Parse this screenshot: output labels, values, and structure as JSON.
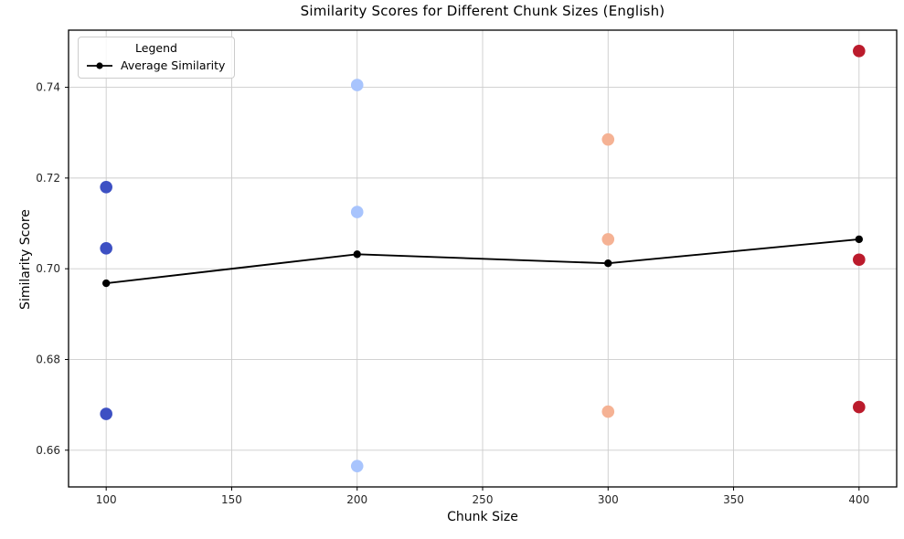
{
  "chart_data": {
    "type": "scatter",
    "title": "Similarity Scores for Different Chunk Sizes (English)",
    "xlabel": "Chunk Size",
    "ylabel": "Similarity Score",
    "xlim": [
      85,
      415
    ],
    "ylim": [
      0.6519,
      0.7526
    ],
    "xtick_values": [
      100,
      150,
      200,
      250,
      300,
      350,
      400
    ],
    "xtick_labels": [
      "100",
      "150",
      "200",
      "250",
      "300",
      "350",
      "400"
    ],
    "ytick_values": [
      0.66,
      0.68,
      0.7,
      0.72,
      0.74
    ],
    "ytick_labels": [
      "0.66",
      "0.68",
      "0.70",
      "0.72",
      "0.74"
    ],
    "grid": true,
    "grid_color": "#cccccc",
    "spine_color": "#000000",
    "tick_label_color": "#262626",
    "scatter_groups": [
      {
        "chunk_size": 100,
        "color": "#3d50c3",
        "values": [
          0.718,
          0.7045,
          0.668
        ]
      },
      {
        "chunk_size": 200,
        "color": "#a8c4fd",
        "values": [
          0.7405,
          0.7125,
          0.6565
        ]
      },
      {
        "chunk_size": 300,
        "color": "#f5b294",
        "values": [
          0.7285,
          0.7065,
          0.6685
        ]
      },
      {
        "chunk_size": 400,
        "color": "#bb1b2c",
        "values": [
          0.748,
          0.702,
          0.6695
        ]
      }
    ],
    "average_series": {
      "name": "Average Similarity",
      "color": "#000000",
      "x": [
        100,
        200,
        300,
        400
      ],
      "y": [
        0.6968,
        0.7032,
        0.7012,
        0.7065
      ]
    },
    "legend": {
      "title": "Legend",
      "entries": [
        {
          "label": "Average Similarity",
          "color": "#000000"
        }
      ],
      "position": "upper left"
    }
  }
}
